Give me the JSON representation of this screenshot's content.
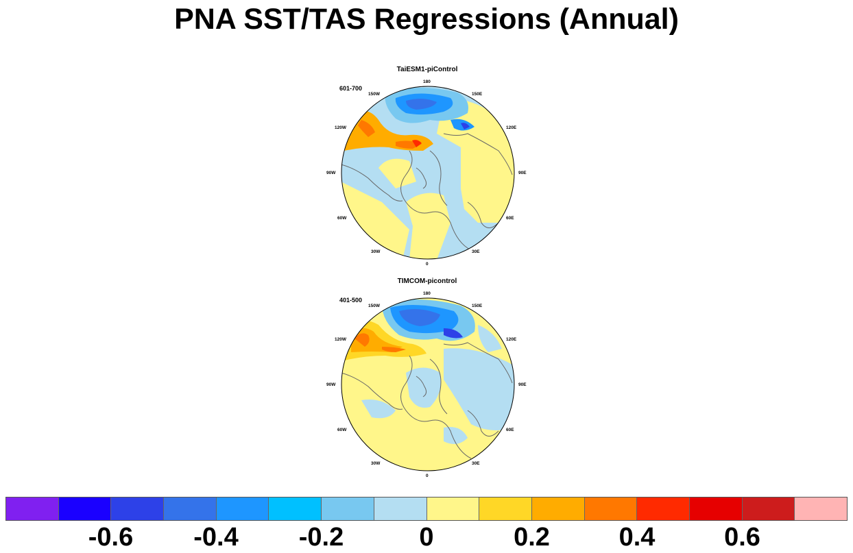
{
  "title": "PNA SST/TAS Regressions (Annual)",
  "panels": [
    {
      "title": "TaiESM1-piControl",
      "period": "601-700",
      "lon_labels": [
        "180",
        "150E",
        "120E",
        "90E",
        "60E",
        "30E",
        "0",
        "30W",
        "60W",
        "90W",
        "120W",
        "150W"
      ]
    },
    {
      "title": "TIMCOM-picontrol",
      "period": "401-500",
      "lon_labels": [
        "180",
        "150E",
        "120E",
        "90E",
        "60E",
        "30E",
        "0",
        "30W",
        "60W",
        "90W",
        "120W",
        "150W"
      ]
    }
  ],
  "colorbar": {
    "colors": [
      "#8020f0",
      "#1a00ff",
      "#2d41e8",
      "#3473ea",
      "#1e96ff",
      "#00c0ff",
      "#78c8f0",
      "#b4def2",
      "#fff68a",
      "#ffd726",
      "#ffac00",
      "#ff7800",
      "#ff2a00",
      "#e60000",
      "#cd1c1c",
      "#ffb4b4"
    ],
    "tick_labels": [
      "-0.6",
      "-0.4",
      "-0.2",
      "0",
      "0.2",
      "0.4",
      "0.6"
    ],
    "levels": [
      -0.7,
      -0.6,
      -0.5,
      -0.4,
      -0.3,
      -0.2,
      -0.1,
      0,
      0.1,
      0.2,
      0.3,
      0.4,
      0.5,
      0.6,
      0.7
    ]
  }
}
